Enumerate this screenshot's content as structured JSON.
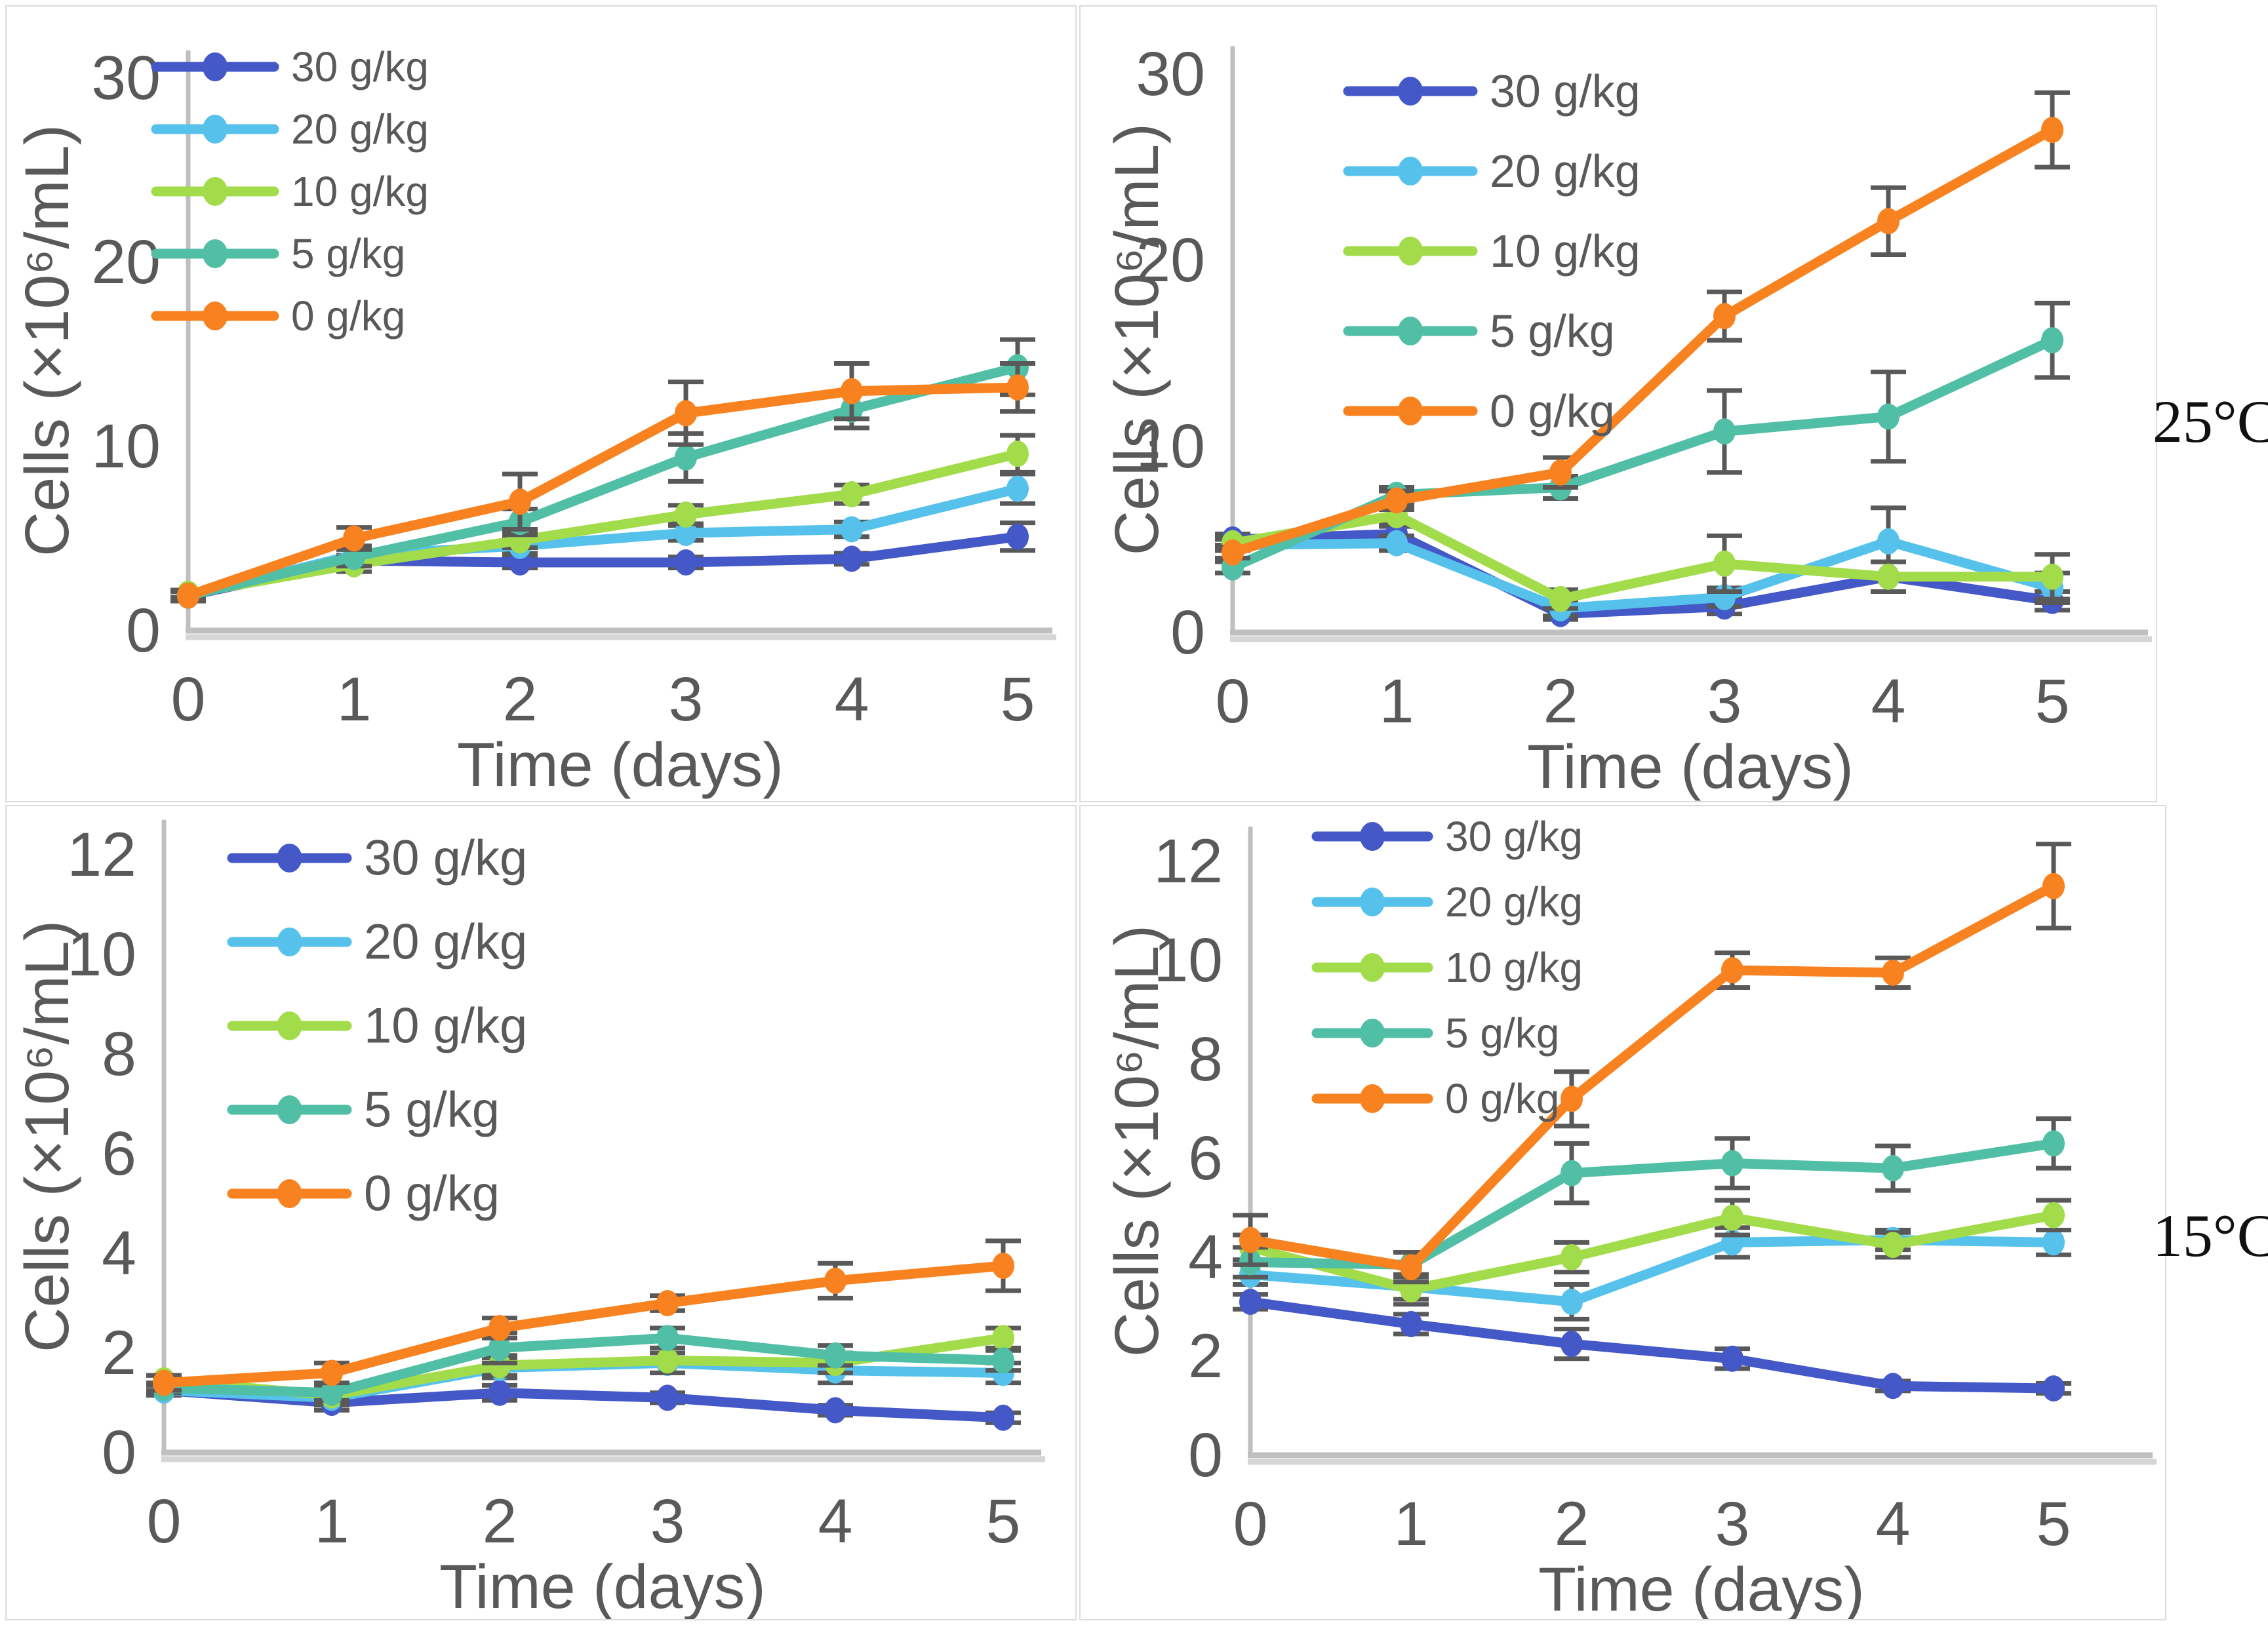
{
  "temperature_labels": {
    "top": "25°C",
    "bottom": "15°C"
  },
  "axis": {
    "xlabel": "Time (days)",
    "ylabel": "Cells (×10⁶/mL)"
  },
  "colors": {
    "dose_30": "#4458C7",
    "dose_20": "#56C2EC",
    "dose_10": "#A2DC4B",
    "dose_5": "#50BFA5",
    "dose_0": "#F8821F",
    "axis_line": "#BFBFBF",
    "text_gray": "#595959",
    "error_bar": "#595959"
  },
  "chart_data": [
    {
      "type": "line",
      "position": "top-left",
      "temperature": "25°C",
      "title": "",
      "xlabel": "Time (days)",
      "ylabel": "Cells (×10⁶/mL)",
      "x": [
        0,
        1,
        2,
        3,
        4,
        5
      ],
      "xticks": [
        0,
        1,
        2,
        3,
        4,
        5
      ],
      "yticks": [
        0,
        10,
        20,
        30
      ],
      "ylim": [
        0,
        31.5
      ],
      "grid": false,
      "legend_position": "upper-left",
      "series": [
        {
          "name": "30 g/kg",
          "color": "#4458C7",
          "values": [
            1.9,
            3.8,
            3.7,
            3.7,
            3.9,
            5.1
          ],
          "errors": [
            0.2,
            0.3,
            0.3,
            0.3,
            0.3,
            0.75
          ]
        },
        {
          "name": "20 g/kg",
          "color": "#56C2EC",
          "values": [
            1.9,
            4.1,
            4.6,
            5.3,
            5.5,
            7.7
          ],
          "errors": [
            0.2,
            0.5,
            0.4,
            0.4,
            0.4,
            0.8
          ]
        },
        {
          "name": "10 g/kg",
          "color": "#A2DC4B",
          "values": [
            2.0,
            3.6,
            4.9,
            6.3,
            7.4,
            9.6
          ],
          "errors": [
            0.2,
            0.4,
            0.4,
            0.5,
            0.5,
            1.0
          ]
        },
        {
          "name": "5 g/kg",
          "color": "#50BFA5",
          "values": [
            1.9,
            4.0,
            5.9,
            9.4,
            12.0,
            14.3
          ],
          "errors": [
            0.2,
            0.5,
            0.7,
            1.3,
            1.0,
            1.5
          ]
        },
        {
          "name": "0 g/kg",
          "color": "#F8821F",
          "values": [
            1.9,
            5.0,
            7.0,
            11.8,
            13.0,
            13.2
          ],
          "errors": [
            0.3,
            0.6,
            1.5,
            1.7,
            1.5,
            1.3
          ]
        }
      ]
    },
    {
      "type": "line",
      "position": "top-right",
      "temperature": "25°C",
      "title": "",
      "xlabel": "Time (days)",
      "ylabel": "Cells (×10⁶/mL)",
      "x": [
        0,
        1,
        2,
        3,
        4,
        5
      ],
      "xticks": [
        0,
        1,
        2,
        3,
        4,
        5
      ],
      "yticks": [
        0,
        10,
        20,
        30
      ],
      "ylim": [
        0,
        31.5
      ],
      "grid": false,
      "legend_position": "upper-left",
      "series": [
        {
          "name": "30 g/kg",
          "color": "#4458C7",
          "values": [
            5.0,
            5.3,
            1.0,
            1.4,
            3.0,
            1.7
          ],
          "errors": [
            0.3,
            0.4,
            0.3,
            0.4,
            0.8,
            0.5
          ]
        },
        {
          "name": "20 g/kg",
          "color": "#56C2EC",
          "values": [
            4.7,
            4.8,
            1.3,
            1.9,
            4.9,
            2.4
          ],
          "errors": [
            0.3,
            0.4,
            0.4,
            0.5,
            1.8,
            0.8
          ]
        },
        {
          "name": "10 g/kg",
          "color": "#A2DC4B",
          "values": [
            4.8,
            6.3,
            1.8,
            3.7,
            3.0,
            3.0
          ],
          "errors": [
            0.3,
            0.5,
            0.5,
            1.5,
            0.8,
            1.2
          ]
        },
        {
          "name": "5 g/kg",
          "color": "#50BFA5",
          "values": [
            3.5,
            7.4,
            7.8,
            10.8,
            11.6,
            15.7
          ],
          "errors": [
            0.3,
            0.4,
            0.6,
            2.2,
            2.4,
            2.0
          ]
        },
        {
          "name": "0 g/kg",
          "color": "#F8821F",
          "values": [
            4.3,
            7.1,
            8.6,
            17.0,
            22.1,
            27.0
          ],
          "errors": [
            0.3,
            0.5,
            0.8,
            1.3,
            1.8,
            2.0
          ]
        }
      ]
    },
    {
      "type": "line",
      "position": "bottom-left",
      "temperature": "15°C",
      "title": "",
      "xlabel": "Time (days)",
      "ylabel": "Cells (×10⁶/mL)",
      "x": [
        0,
        1,
        2,
        3,
        4,
        5
      ],
      "xticks": [
        0,
        1,
        2,
        3,
        4,
        5
      ],
      "yticks": [
        0,
        2,
        4,
        6,
        8,
        10,
        12
      ],
      "ylim": [
        0,
        12.7
      ],
      "grid": false,
      "legend_position": "upper-left",
      "series": [
        {
          "name": "30 g/kg",
          "color": "#4458C7",
          "values": [
            1.25,
            1.0,
            1.2,
            1.1,
            0.85,
            0.7
          ],
          "errors": [
            0.1,
            0.15,
            0.15,
            0.1,
            0.1,
            0.1
          ]
        },
        {
          "name": "20 g/kg",
          "color": "#56C2EC",
          "values": [
            1.25,
            1.1,
            1.7,
            1.8,
            1.65,
            1.6
          ],
          "errors": [
            0.1,
            0.15,
            0.2,
            0.2,
            0.25,
            0.2
          ]
        },
        {
          "name": "10 g/kg",
          "color": "#A2DC4B",
          "values": [
            1.45,
            1.15,
            1.75,
            1.85,
            1.8,
            2.3
          ],
          "errors": [
            0.1,
            0.15,
            0.2,
            0.25,
            0.2,
            0.2
          ]
        },
        {
          "name": "5 g/kg",
          "color": "#50BFA5",
          "values": [
            1.3,
            1.2,
            2.1,
            2.3,
            1.95,
            1.85
          ],
          "errors": [
            0.1,
            0.15,
            0.3,
            0.2,
            0.2,
            0.2
          ]
        },
        {
          "name": "0 g/kg",
          "color": "#F8821F",
          "values": [
            1.4,
            1.6,
            2.5,
            3.0,
            3.45,
            3.75
          ],
          "errors": [
            0.15,
            0.2,
            0.2,
            0.15,
            0.35,
            0.5
          ]
        }
      ]
    },
    {
      "type": "line",
      "position": "bottom-right",
      "temperature": "15°C",
      "title": "",
      "xlabel": "Time (days)",
      "ylabel": "Cells (×10⁶/mL)",
      "x": [
        0,
        1,
        2,
        3,
        4,
        5
      ],
      "xticks": [
        0,
        1,
        2,
        3,
        4,
        5
      ],
      "yticks": [
        0,
        2,
        4,
        6,
        8,
        10,
        12
      ],
      "ylim": [
        0,
        12.7
      ],
      "grid": false,
      "legend_position": "upper-left",
      "series": [
        {
          "name": "30 g/kg",
          "color": "#4458C7",
          "values": [
            3.1,
            2.65,
            2.25,
            1.95,
            1.4,
            1.35
          ],
          "errors": [
            0.15,
            0.2,
            0.3,
            0.2,
            0.1,
            0.1
          ]
        },
        {
          "name": "20 g/kg",
          "color": "#56C2EC",
          "values": [
            3.65,
            3.4,
            3.1,
            4.3,
            4.35,
            4.3
          ],
          "errors": [
            0.2,
            0.25,
            0.35,
            0.3,
            0.2,
            0.25
          ]
        },
        {
          "name": "10 g/kg",
          "color": "#A2DC4B",
          "values": [
            4.2,
            3.35,
            4.0,
            4.8,
            4.25,
            4.85
          ],
          "errors": [
            0.25,
            0.3,
            0.3,
            0.35,
            0.25,
            0.3
          ]
        },
        {
          "name": "5 g/kg",
          "color": "#50BFA5",
          "values": [
            3.9,
            3.85,
            5.7,
            5.9,
            5.8,
            6.3
          ],
          "errors": [
            0.3,
            0.25,
            0.6,
            0.5,
            0.45,
            0.5
          ]
        },
        {
          "name": "0 g/kg",
          "color": "#F8821F",
          "values": [
            4.35,
            3.8,
            7.2,
            9.8,
            9.75,
            11.5
          ],
          "errors": [
            0.5,
            0.3,
            0.55,
            0.35,
            0.3,
            0.85
          ]
        }
      ]
    }
  ]
}
